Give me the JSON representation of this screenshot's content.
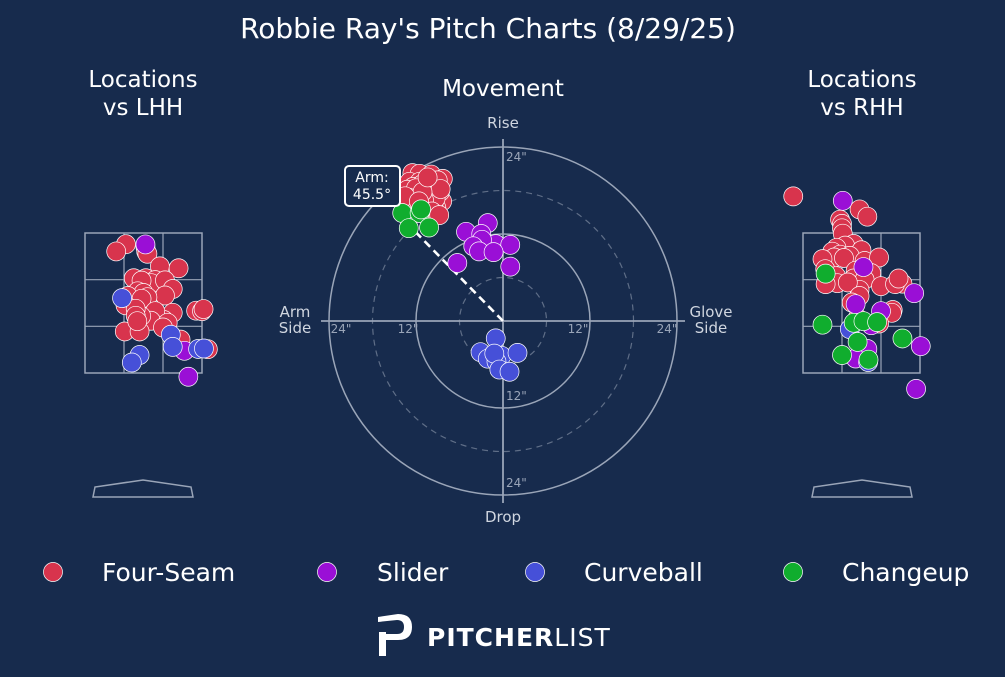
{
  "title": "Robbie Ray's Pitch Charts (8/29/25)",
  "colors": {
    "background": "#172b4d",
    "four_seam": "#d8344d",
    "slider": "#9a0fd6",
    "curveball": "#4650d8",
    "changeup": "#10ad2e",
    "guide": "#9aa5b8"
  },
  "legend": {
    "items": [
      {
        "label": "Four-Seam",
        "color": "#d8344d"
      },
      {
        "label": "Slider",
        "color": "#9a0fd6"
      },
      {
        "label": "Curveball",
        "color": "#4650d8"
      },
      {
        "label": "Changeup",
        "color": "#10ad2e"
      }
    ]
  },
  "branding": {
    "logo_text": "PITCHERLIST",
    "logo_bold": "PITCHER",
    "logo_light": "LIST"
  },
  "chart_data": [
    {
      "type": "scatter",
      "title": "Locations\nvs LHH",
      "x_units": "plate_x (catcher view, strike-zone widths)",
      "y_units": "plate_z (strike-zone heights)",
      "series": [
        {
          "name": "Four-Seam",
          "points": [
            [
              -0.45,
              2.52
            ],
            [
              -0.7,
              2.21
            ],
            [
              0.05,
              2.4
            ],
            [
              0.07,
              2.2
            ],
            [
              0.1,
              2.11
            ],
            [
              0.42,
              1.57
            ],
            [
              0.9,
              1.49
            ],
            [
              -0.25,
              1.06
            ],
            [
              0.06,
              1.06
            ],
            [
              0.3,
              0.98
            ],
            [
              0.2,
              0.85
            ],
            [
              0.55,
              0.97
            ],
            [
              -0.05,
              0.96
            ],
            [
              0.75,
              0.6
            ],
            [
              -0.15,
              0.5
            ],
            [
              0.55,
              0.32
            ],
            [
              0.0,
              0.43
            ],
            [
              0.1,
              0.25
            ],
            [
              -0.4,
              0.3
            ],
            [
              -0.15,
              -0.15
            ],
            [
              -0.05,
              0.18
            ],
            [
              0.75,
              -0.42
            ],
            [
              0.52,
              -0.73
            ],
            [
              0.3,
              -0.35
            ],
            [
              0.19,
              -0.76
            ],
            [
              -0.06,
              -0.56
            ],
            [
              -0.46,
              -0.1
            ],
            [
              -0.2,
              -0.25
            ],
            [
              0.62,
              -0.85
            ],
            [
              -0.2,
              -0.55
            ],
            [
              -0.48,
              -1.22
            ],
            [
              -0.1,
              -1.22
            ],
            [
              1.35,
              -0.33
            ],
            [
              1.5,
              -0.35
            ],
            [
              1.54,
              -0.26
            ],
            [
              0.95,
              -1.57
            ],
            [
              1.65,
              -1.98
            ],
            [
              0.5,
              -1.05
            ],
            [
              -0.16,
              -0.78
            ]
          ]
        },
        {
          "name": "Slider",
          "points": [
            [
              0.05,
              2.51
            ],
            [
              1.05,
              -2.05
            ],
            [
              1.15,
              -3.16
            ]
          ]
        },
        {
          "name": "Curveball",
          "points": [
            [
              -0.55,
              0.21
            ],
            [
              0.7,
              -1.36
            ],
            [
              -0.1,
              -2.23
            ],
            [
              -0.3,
              -2.55
            ],
            [
              0.75,
              -1.88
            ],
            [
              1.4,
              -1.97
            ],
            [
              1.55,
              -1.95
            ]
          ]
        },
        {
          "name": "Changeup",
          "points": []
        }
      ]
    },
    {
      "type": "scatter",
      "subtype": "polar",
      "title": "Movement",
      "axis_labels": {
        "top": "Rise",
        "bottom": "Drop",
        "left": "Arm\nSide",
        "right": "Glove\nSide"
      },
      "ring_ticks": [
        "12\"",
        "24\""
      ],
      "rings_inches": [
        6,
        12,
        18,
        24
      ],
      "arm_angle": {
        "label": "Arm:\n45.5°",
        "degrees": 45.5
      },
      "x_units": "horizontal break (in), negative = arm side",
      "y_units": "induced vertical break (in)",
      "series": [
        {
          "name": "Four-Seam",
          "points": [
            [
              -12.5,
              20.4
            ],
            [
              -11.5,
              20.3
            ],
            [
              -9.9,
              20.2
            ],
            [
              -8.3,
              19.6
            ],
            [
              -9.0,
              19.4
            ],
            [
              -10.5,
              19.1
            ],
            [
              -12.9,
              19.2
            ],
            [
              -11.5,
              19.2
            ],
            [
              -12.4,
              18.5
            ],
            [
              -10.2,
              18.6
            ],
            [
              -9.1,
              18.0
            ],
            [
              -9.0,
              17.6
            ],
            [
              -10.6,
              17.2
            ],
            [
              -11.1,
              18.9
            ],
            [
              -12.3,
              17.6
            ],
            [
              -12.0,
              16.8
            ],
            [
              -10.3,
              16.0
            ],
            [
              -8.4,
              16.5
            ],
            [
              -11.4,
              16.0
            ],
            [
              -12.1,
              15.8
            ],
            [
              -10.5,
              15.0
            ],
            [
              -9.2,
              15.6
            ],
            [
              -8.7,
              17.8
            ],
            [
              -10.0,
              17.9
            ],
            [
              -12.7,
              16.6
            ],
            [
              -11.0,
              15.5
            ],
            [
              -9.6,
              16.0
            ],
            [
              -13.2,
              18.1
            ],
            [
              -11.8,
              17.1
            ],
            [
              -10.0,
              18.5
            ],
            [
              -9.3,
              16.9
            ],
            [
              -8.6,
              18.2
            ],
            [
              -10.9,
              16.7
            ],
            [
              -12.0,
              18.3
            ],
            [
              -13.0,
              17.0
            ],
            [
              -11.1,
              17.8
            ],
            [
              -9.8,
              15.1
            ],
            [
              -8.8,
              14.6
            ],
            [
              -10.4,
              19.8
            ],
            [
              -13.5,
              17.2
            ],
            [
              -11.6,
              16.5
            ]
          ]
        },
        {
          "name": "Slider",
          "points": [
            [
              -2.1,
              13.5
            ],
            [
              -5.1,
              12.3
            ],
            [
              -3.0,
              12.0
            ],
            [
              -1.0,
              10.6
            ],
            [
              -2.9,
              11.2
            ],
            [
              -4.1,
              10.3
            ],
            [
              1.0,
              10.5
            ],
            [
              -3.3,
              9.6
            ],
            [
              -1.3,
              9.5
            ],
            [
              -6.3,
              8.0
            ],
            [
              1.0,
              7.5
            ]
          ]
        },
        {
          "name": "Curveball",
          "points": [
            [
              -1.0,
              -2.4
            ],
            [
              -3.1,
              -4.3
            ],
            [
              -1.3,
              -4.6
            ],
            [
              -2.1,
              -5.2
            ],
            [
              -0.2,
              -4.8
            ],
            [
              2.0,
              -4.4
            ],
            [
              -0.9,
              -5.6
            ],
            [
              -1.2,
              -4.5
            ],
            [
              -0.5,
              -6.7
            ],
            [
              0.9,
              -7.0
            ]
          ]
        },
        {
          "name": "Changeup",
          "points": [
            [
              -13.9,
              14.9
            ],
            [
              -11.5,
              14.9
            ],
            [
              -11.3,
              15.4
            ],
            [
              -13.0,
              12.8
            ],
            [
              -10.2,
              12.9
            ]
          ]
        }
      ]
    },
    {
      "type": "scatter",
      "title": "Locations\nvs RHH",
      "x_units": "plate_x (catcher view, strike-zone widths)",
      "y_units": "plate_z (strike-zone heights)",
      "series": [
        {
          "name": "Four-Seam",
          "points": [
            [
              -1.75,
              4.57
            ],
            [
              -0.05,
              4.01
            ],
            [
              0.15,
              3.7
            ],
            [
              -0.55,
              3.57
            ],
            [
              -0.5,
              3.39
            ],
            [
              -0.5,
              3.2
            ],
            [
              -0.48,
              2.97
            ],
            [
              -0.2,
              2.53
            ],
            [
              -0.42,
              2.46
            ],
            [
              -0.64,
              2.36
            ],
            [
              0.0,
              2.26
            ],
            [
              -0.75,
              2.2
            ],
            [
              -0.55,
              2.07
            ],
            [
              -0.3,
              2.02
            ],
            [
              -0.7,
              1.95
            ],
            [
              -1.0,
              1.88
            ],
            [
              0.08,
              1.8
            ],
            [
              -0.45,
              1.93
            ],
            [
              0.45,
              1.95
            ],
            [
              -0.93,
              1.45
            ],
            [
              -0.15,
              1.38
            ],
            [
              0.25,
              1.28
            ],
            [
              -0.2,
              1.05
            ],
            [
              -0.65,
              1.15
            ],
            [
              0.08,
              1.0
            ],
            [
              -0.62,
              0.85
            ],
            [
              -0.92,
              0.81
            ],
            [
              -0.05,
              0.56
            ],
            [
              0.5,
              0.72
            ],
            [
              -0.35,
              0.88
            ],
            [
              0.98,
              0.93
            ],
            [
              1.05,
              0.83
            ],
            [
              0.86,
              0.81
            ],
            [
              -0.05,
              0.3
            ],
            [
              -0.25,
              0.02
            ],
            [
              0.8,
              -0.3
            ],
            [
              0.78,
              -0.42
            ],
            [
              0.45,
              -0.88
            ],
            [
              -0.1,
              -0.65
            ],
            [
              0.95,
              1.05
            ]
          ]
        },
        {
          "name": "Slider",
          "points": [
            [
              -0.48,
              4.38
            ],
            [
              0.05,
              1.54
            ],
            [
              1.35,
              0.42
            ],
            [
              -0.15,
              -0.05
            ],
            [
              0.5,
              -0.35
            ],
            [
              0.25,
              -0.95
            ],
            [
              1.52,
              -1.85
            ],
            [
              0.15,
              -1.97
            ],
            [
              -0.15,
              -2.38
            ],
            [
              1.4,
              -3.68
            ]
          ]
        },
        {
          "name": "Curveball",
          "points": [
            [
              -0.3,
              -1.12
            ],
            [
              0.17,
              -2.53
            ]
          ]
        },
        {
          "name": "Changeup",
          "points": [
            [
              -0.92,
              1.26
            ],
            [
              -1.0,
              -0.93
            ],
            [
              -0.2,
              -0.85
            ],
            [
              0.05,
              -0.78
            ],
            [
              -0.1,
              -1.67
            ],
            [
              0.4,
              -0.82
            ],
            [
              1.05,
              -1.52
            ],
            [
              -0.5,
              -2.23
            ],
            [
              0.18,
              -2.43
            ]
          ]
        }
      ]
    }
  ]
}
